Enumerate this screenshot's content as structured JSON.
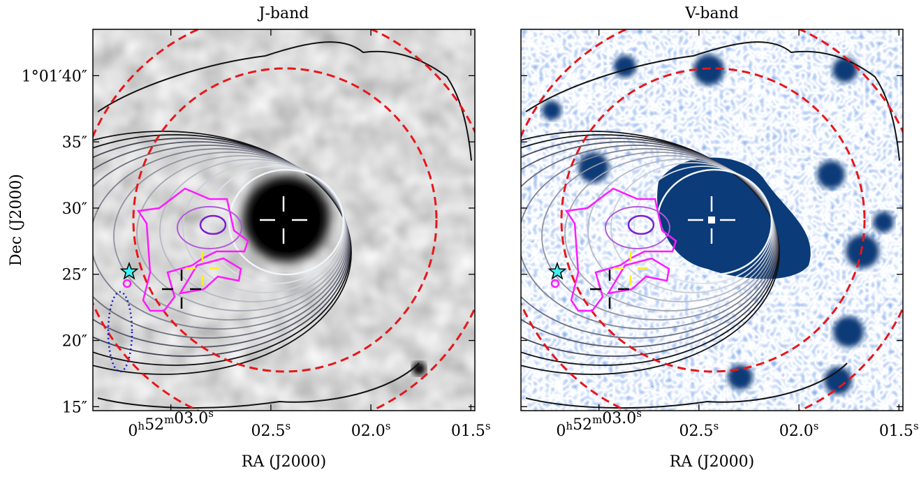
{
  "chart_data": [
    {
      "type": "image",
      "title": "J-band",
      "xlabel": "RA (J2000)",
      "ylabel": "Dec (J2000)",
      "xlim": [
        3.39,
        1.48
      ],
      "xticks": [
        {
          "value": 3.0,
          "label": "0h52m03.0s"
        },
        {
          "value": 2.5,
          "label": "02.5s"
        },
        {
          "value": 2.0,
          "label": "02.0s"
        },
        {
          "value": 1.5,
          "label": "01.5s"
        }
      ],
      "ylim": [
        14.7,
        43.5
      ],
      "yticks": [
        {
          "value": 40,
          "label": "1°01′40″"
        },
        {
          "value": 35,
          "label": "35″"
        },
        {
          "value": 30,
          "label": "30″"
        },
        {
          "value": 25,
          "label": "25″"
        },
        {
          "value": 20,
          "label": "20″"
        },
        {
          "value": 15,
          "label": "15″"
        }
      ],
      "colormap": "gray"
    },
    {
      "type": "image",
      "title": "V-band",
      "xlabel": "RA (J2000)",
      "xlim": [
        3.39,
        1.48
      ],
      "xticks": [
        {
          "value": 3.0,
          "label": "0h52m03.0s"
        },
        {
          "value": 2.5,
          "label": "02.5s"
        },
        {
          "value": 2.0,
          "label": "02.0s"
        },
        {
          "value": 1.5,
          "label": "01.5s"
        }
      ],
      "ylim": [
        14.7,
        43.5
      ],
      "colormap": "blues"
    }
  ]
}
